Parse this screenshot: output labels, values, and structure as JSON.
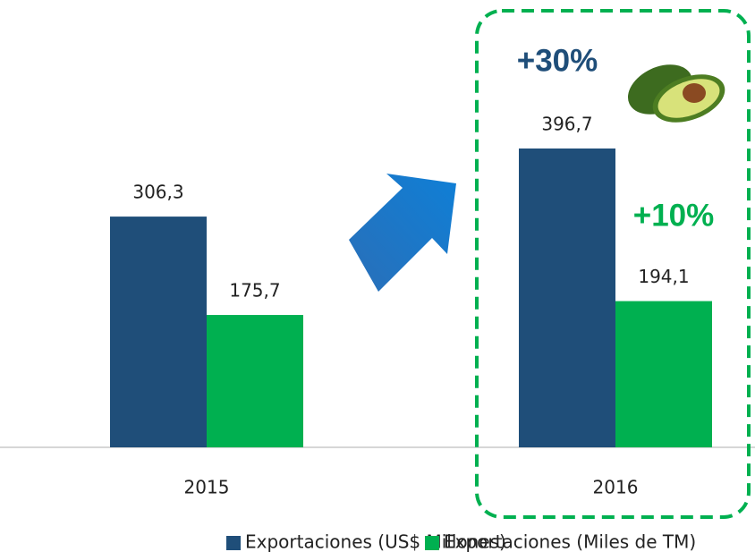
{
  "chart_data": {
    "type": "bar",
    "categories": [
      "2015",
      "2016"
    ],
    "series": [
      {
        "name": "Exportaciones (US$ Millones)",
        "color": "#1f4e79",
        "values": [
          306.3,
          396.7
        ],
        "value_labels": [
          "306,3",
          "396,7"
        ]
      },
      {
        "name": "Exportaciones (Miles de TM)",
        "color": "#00b050",
        "values": [
          175.7,
          194.1
        ],
        "value_labels": [
          "175,7",
          "194,1"
        ]
      }
    ],
    "annotations": [
      {
        "text": "+30%",
        "color": "#1f4e79"
      },
      {
        "text": "+10%",
        "color": "#00b050"
      }
    ],
    "legend": "bottom"
  }
}
